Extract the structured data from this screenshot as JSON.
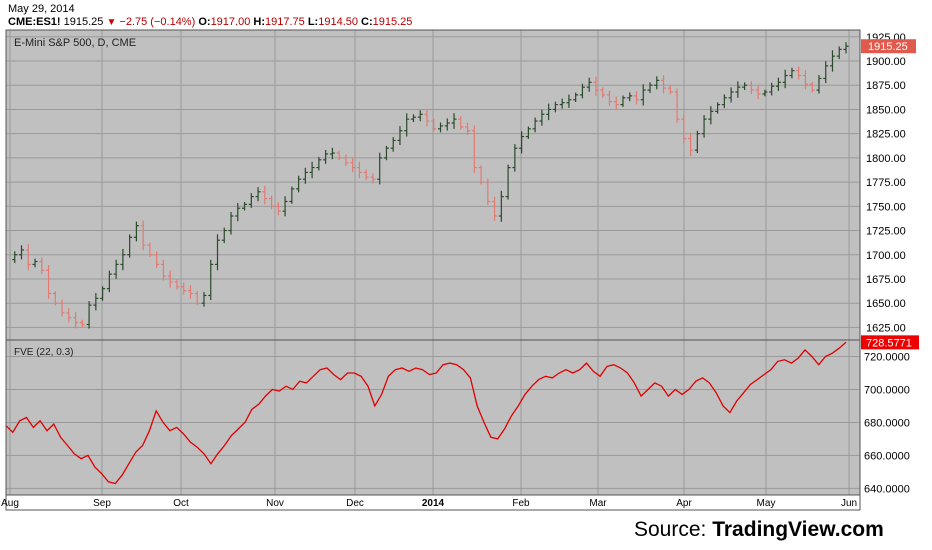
{
  "header": {
    "date": "May 29, 2014",
    "symbol": "CME:ES1!",
    "last": "1915.25",
    "change": "−2.75 (−0.14%)",
    "open_label": "O:",
    "open": "1917.00",
    "high_label": "H:",
    "high": "1917.75",
    "low_label": "L:",
    "low": "1914.50",
    "close_label": "C:",
    "close": "1915.25"
  },
  "colors": {
    "panel_bg": "#c0c0c0",
    "grid": "#9a9a9a",
    "up_bar": "#2a4a2a",
    "down_bar": "#e37a72",
    "fve_line": "#e00000",
    "price_badge": "#e05a4e",
    "fve_badge": "#ee0000"
  },
  "source": {
    "prefix": "Source: ",
    "brand": "TradingView.com"
  },
  "chart_data": [
    {
      "type": "ohlc",
      "title": "E-Mini S&P 500, D, CME",
      "ylim": [
        1612,
        1932
      ],
      "y_ticks": [
        1625,
        1650,
        1675,
        1700,
        1725,
        1750,
        1775,
        1800,
        1825,
        1850,
        1875,
        1900,
        1925
      ],
      "y_tick_labels": [
        "1625.00",
        "1650.00",
        "1675.00",
        "1700.00",
        "1725.00",
        "1750.00",
        "1775.00",
        "1800.00",
        "1825.00",
        "1850.00",
        "1875.00",
        "1900.00",
        "1925.00"
      ],
      "last_value_label": "1915.25",
      "path": [
        1695,
        1700,
        1705,
        1690,
        1693,
        1684,
        1660,
        1650,
        1640,
        1635,
        1630,
        1628,
        1648,
        1655,
        1665,
        1680,
        1690,
        1700,
        1718,
        1730,
        1710,
        1700,
        1690,
        1678,
        1672,
        1667,
        1663,
        1660,
        1650,
        1658,
        1690,
        1715,
        1725,
        1740,
        1748,
        1752,
        1760,
        1765,
        1758,
        1750,
        1745,
        1755,
        1768,
        1778,
        1785,
        1790,
        1798,
        1804,
        1805,
        1800,
        1795,
        1790,
        1785,
        1780,
        1778,
        1800,
        1810,
        1818,
        1828,
        1840,
        1842,
        1845,
        1838,
        1830,
        1833,
        1836,
        1840,
        1832,
        1828,
        1790,
        1775,
        1755,
        1740,
        1760,
        1790,
        1810,
        1822,
        1830,
        1838,
        1845,
        1850,
        1855,
        1857,
        1860,
        1865,
        1873,
        1878,
        1870,
        1865,
        1858,
        1855,
        1862,
        1864,
        1860,
        1870,
        1875,
        1880,
        1872,
        1868,
        1840,
        1820,
        1808,
        1825,
        1840,
        1848,
        1855,
        1862,
        1868,
        1873,
        1875,
        1870,
        1866,
        1868,
        1874,
        1878,
        1885,
        1890,
        1885,
        1876,
        1870,
        1882,
        1895,
        1905,
        1912,
        1915.25
      ]
    },
    {
      "type": "line",
      "title": "FVE (22, 0.3)",
      "ylim": [
        636,
        730
      ],
      "y_ticks": [
        640,
        660,
        680,
        700,
        720
      ],
      "y_tick_labels": [
        "640.0000",
        "660.0000",
        "680.0000",
        "700.0000",
        "720.0000"
      ],
      "last_value_label": "728.5771",
      "x_labels": [
        "Aug",
        "Sep",
        "Oct",
        "Nov",
        "Dec",
        "2014",
        "Feb",
        "Mar",
        "Apr",
        "May",
        "Jun"
      ],
      "values": [
        678,
        674,
        681,
        683,
        677,
        681,
        675,
        679,
        671,
        666,
        661,
        658,
        660,
        653,
        649,
        644,
        643,
        648,
        655,
        662,
        666,
        675,
        687,
        680,
        675,
        677,
        673,
        668,
        665,
        661,
        655,
        661,
        666,
        672,
        676,
        680,
        688,
        691,
        696,
        700,
        699,
        702,
        700,
        705,
        704,
        708,
        712,
        713,
        709,
        706,
        710,
        710,
        708,
        702,
        690,
        697,
        708,
        712,
        713,
        711,
        713,
        712,
        709,
        710,
        715,
        716,
        715,
        712,
        707,
        690,
        680,
        671,
        670,
        676,
        684,
        690,
        697,
        702,
        706,
        708,
        707,
        710,
        712,
        710,
        712,
        716,
        711,
        708,
        714,
        715,
        713,
        710,
        704,
        696,
        700,
        704,
        702,
        696,
        700,
        697,
        700,
        705,
        707,
        704,
        698,
        690,
        686,
        693,
        698,
        703,
        706,
        709,
        712,
        717,
        718,
        716,
        719,
        724,
        720,
        715,
        720,
        722,
        725,
        728.5771
      ]
    }
  ]
}
